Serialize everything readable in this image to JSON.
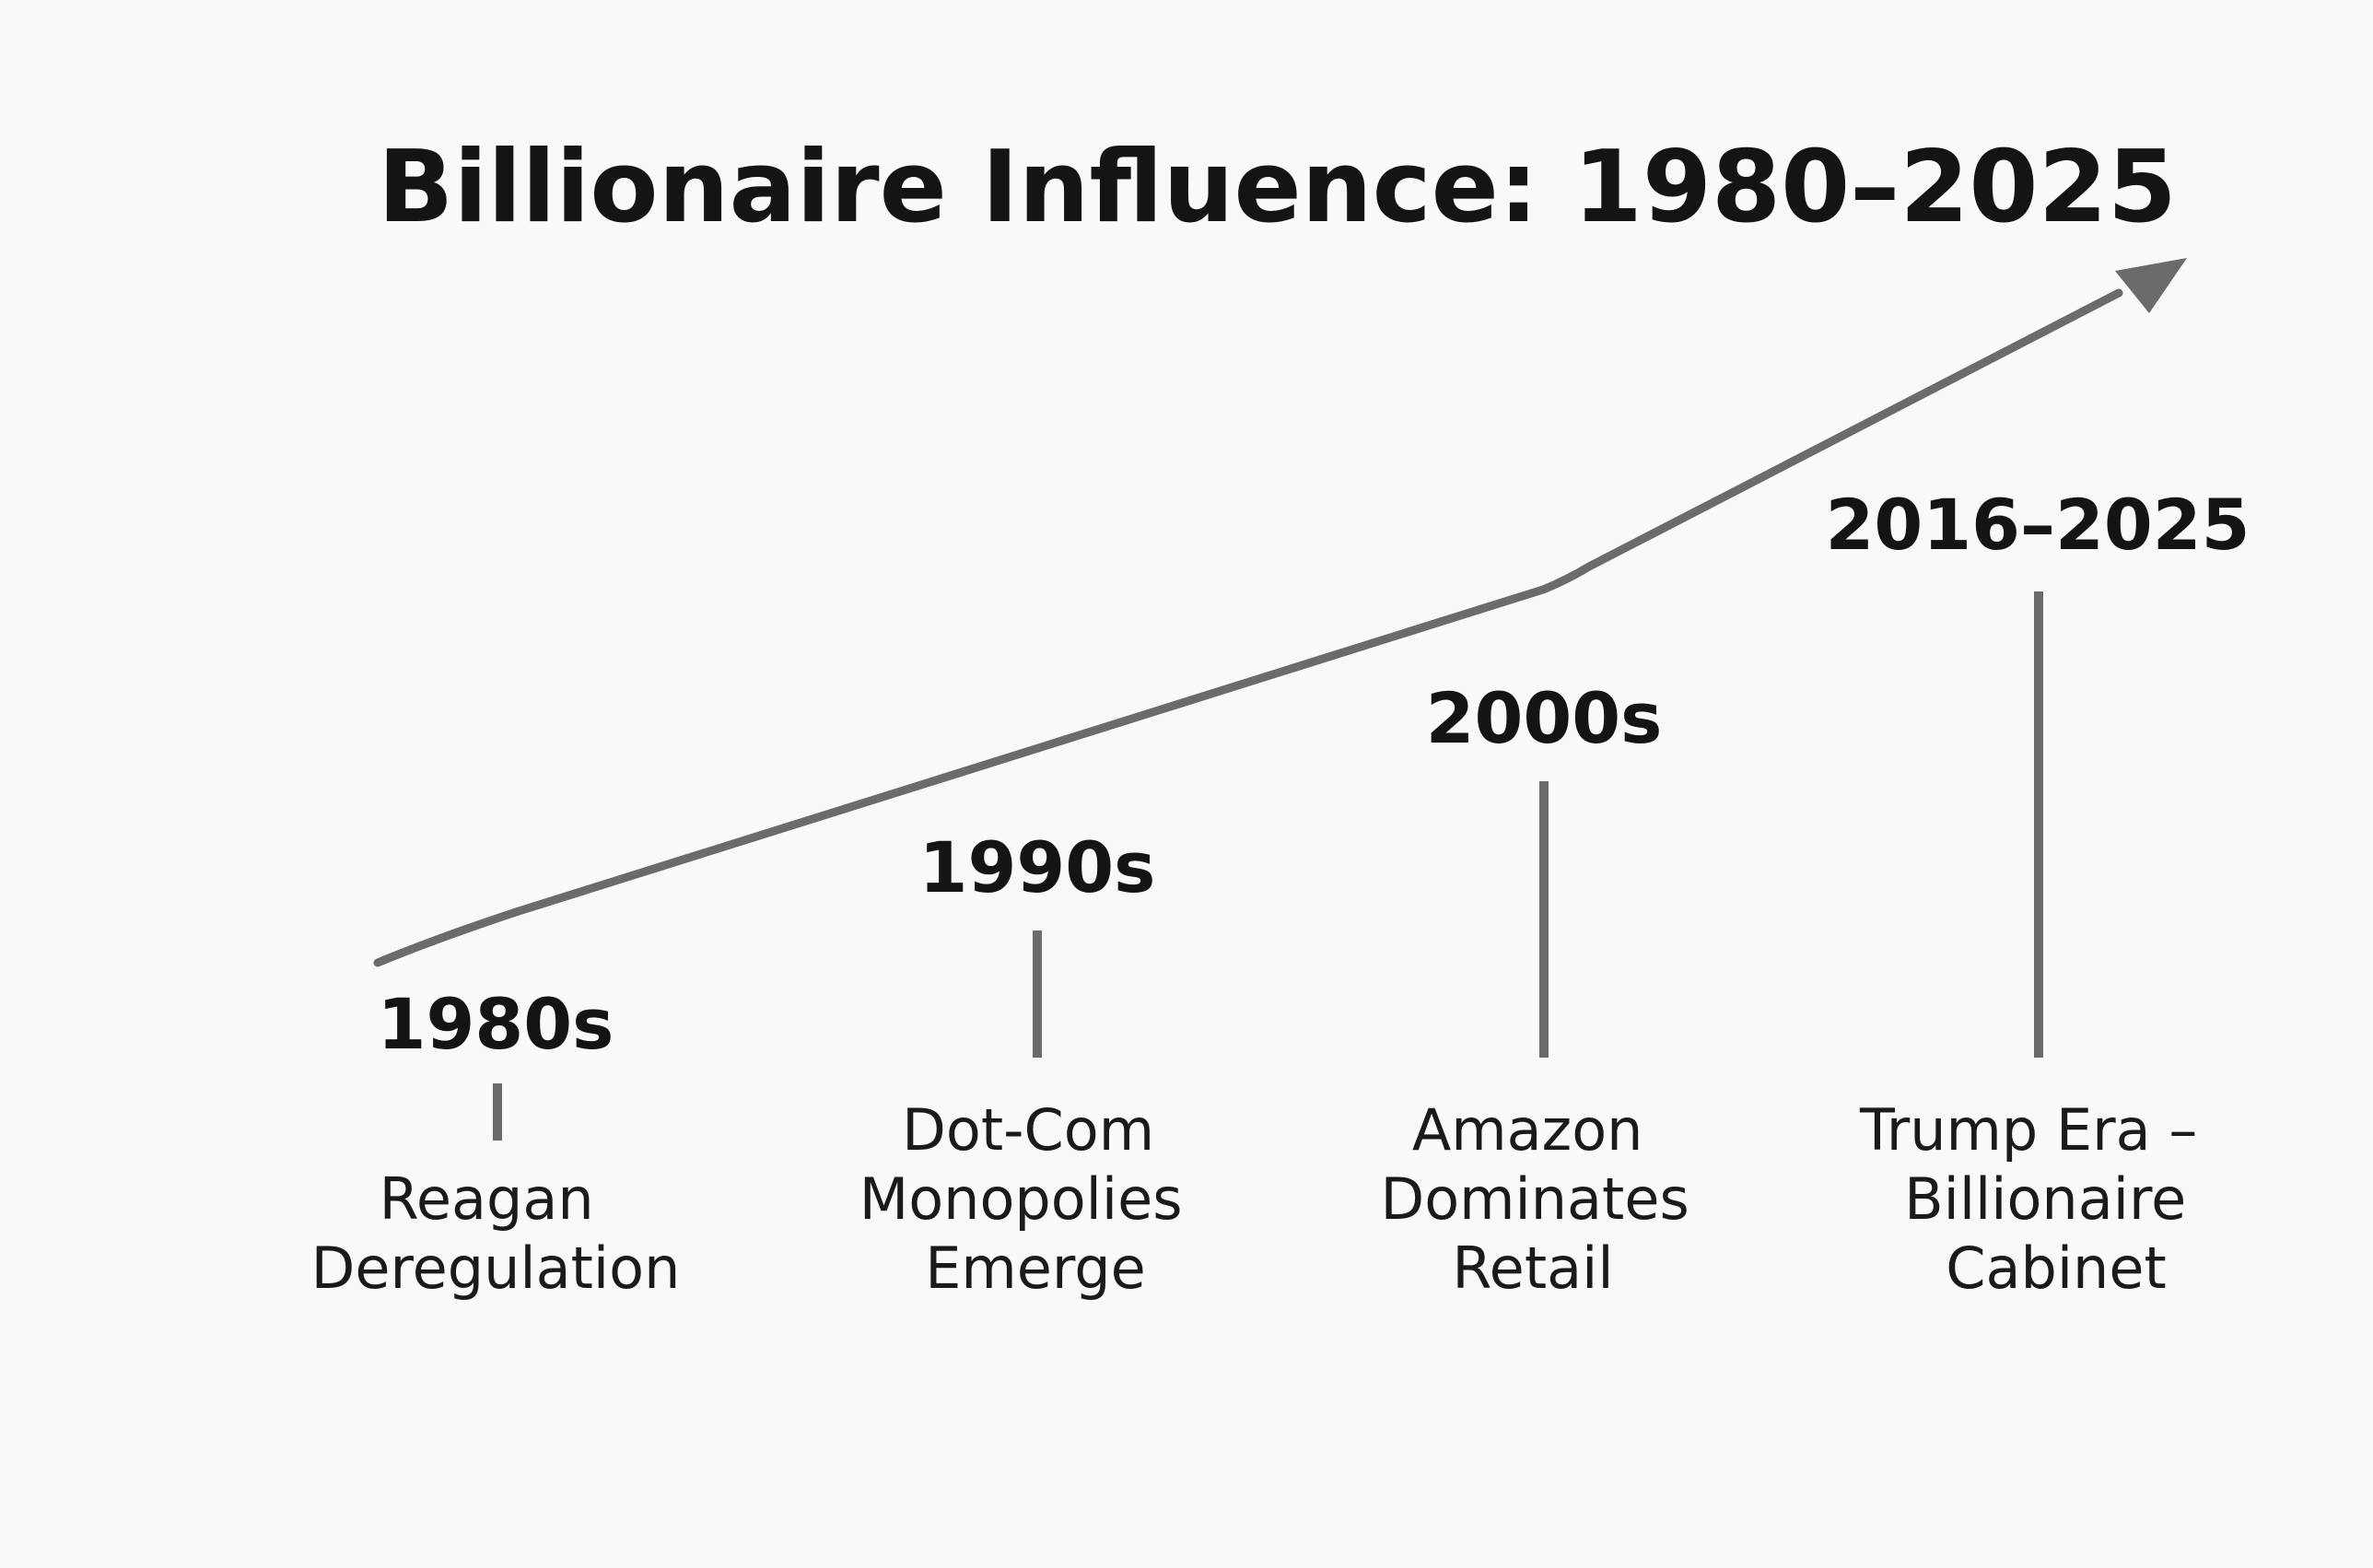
{
  "title": "Billionaire Influence: 1980–2025",
  "colors": {
    "background": "#f9f9f9",
    "line": "#6b6b6b",
    "text": "#141414"
  },
  "milestones": [
    {
      "era": "1980s",
      "description": [
        "Reagan",
        "Deregulation"
      ]
    },
    {
      "era": "1990s",
      "description": [
        "Dot-Com",
        "Monopolies",
        "Emerge"
      ]
    },
    {
      "era": "2000s",
      "description": [
        "Amazon",
        "Dominates",
        "Retail"
      ]
    },
    {
      "era": "2016–2025",
      "description": [
        "Trump Era –",
        "Billionaire",
        "Cabinet"
      ]
    }
  ]
}
